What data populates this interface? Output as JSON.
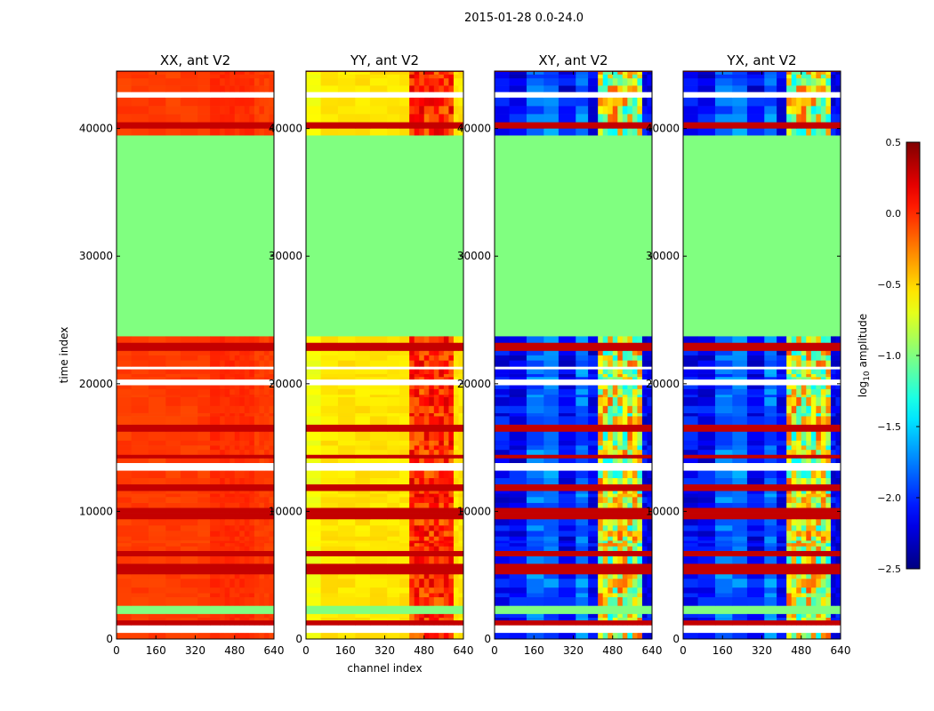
{
  "suptitle": "2015-01-28 0.0-24.0",
  "chart_data": [
    {
      "type": "heatmap",
      "title": "XX, ant V2",
      "pol": "XX",
      "xlabel": "",
      "ylabel": "time index",
      "xlim": [
        0,
        640
      ],
      "ylim": [
        0,
        44500
      ],
      "xticks": [
        0,
        160,
        320,
        480,
        640
      ],
      "yticks": [
        0,
        10000,
        20000,
        30000,
        40000
      ],
      "xtick_labels": [
        "0",
        "160",
        "320",
        "480",
        "640"
      ],
      "ytick_labels": [
        "0",
        "10000",
        "20000",
        "30000",
        "40000"
      ]
    },
    {
      "type": "heatmap",
      "title": "YY, ant V2",
      "pol": "YY",
      "xlabel": "channel index",
      "ylabel": "",
      "xlim": [
        0,
        640
      ],
      "ylim": [
        0,
        44500
      ],
      "xticks": [
        0,
        160,
        320,
        480,
        640
      ],
      "yticks": [
        0,
        10000,
        20000,
        30000,
        40000
      ],
      "xtick_labels": [
        "0",
        "160",
        "320",
        "480",
        "640"
      ],
      "ytick_labels": [
        "0",
        "10000",
        "20000",
        "30000",
        "40000"
      ]
    },
    {
      "type": "heatmap",
      "title": "XY, ant V2",
      "pol": "XY",
      "xlabel": "",
      "ylabel": "",
      "xlim": [
        0,
        640
      ],
      "ylim": [
        0,
        44500
      ],
      "xticks": [
        0,
        160,
        320,
        480,
        640
      ],
      "yticks": [
        0,
        10000,
        20000,
        30000,
        40000
      ],
      "xtick_labels": [
        "0",
        "160",
        "320",
        "480",
        "640"
      ],
      "ytick_labels": [
        "0",
        "10000",
        "20000",
        "30000",
        "40000"
      ]
    },
    {
      "type": "heatmap",
      "title": "YX, ant V2",
      "pol": "YX",
      "xlabel": "",
      "ylabel": "",
      "xlim": [
        0,
        640
      ],
      "ylim": [
        0,
        44500
      ],
      "xticks": [
        0,
        160,
        320,
        480,
        640
      ],
      "yticks": [
        0,
        10000,
        20000,
        30000,
        40000
      ],
      "xtick_labels": [
        "0",
        "160",
        "320",
        "480",
        "640"
      ],
      "ytick_labels": [
        "0",
        "10000",
        "20000",
        "30000",
        "40000"
      ]
    }
  ],
  "colorbar": {
    "label": "log",
    "label_sub": "10",
    "label_rest": " amplitude",
    "vmin": -2.5,
    "vmax": 0.5,
    "ticks": [
      0.5,
      0.0,
      -0.5,
      -1.0,
      -1.5,
      -2.0,
      -2.5
    ],
    "tick_labels": [
      "0.5",
      "0.0",
      "−0.5",
      "−1.0",
      "−1.5",
      "−2.0",
      "−2.5"
    ],
    "colormap": "jet"
  },
  "flagged_rows": [
    [
      2200,
      2600
    ],
    [
      23800,
      39600
    ]
  ]
}
